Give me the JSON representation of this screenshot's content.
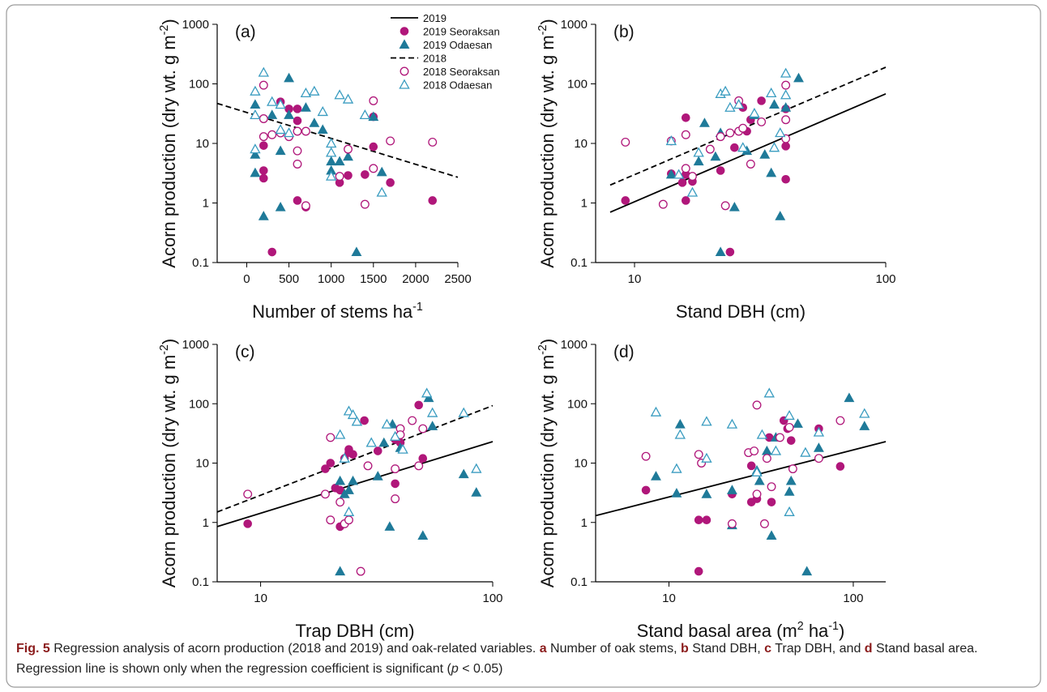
{
  "chart_data": [
    {
      "type": "scatter",
      "panel_label": "(a)",
      "xscale": "linear",
      "yscale": "log",
      "xlabel": [
        "Number of stems ha",
        "-1"
      ],
      "ylabel": [
        "Acorn production (dry wt. g m",
        "-2",
        ")"
      ],
      "xlim": [
        -350,
        2500
      ],
      "ylim": [
        0.1,
        1000
      ],
      "xticks": [
        0,
        500,
        1000,
        1500,
        2000,
        2500
      ],
      "yticks": [
        0.1,
        1,
        10,
        100,
        1000
      ],
      "legend": [
        {
          "label": "2019",
          "marker": "line",
          "color": "#000000",
          "dash": false
        },
        {
          "label": "2019 Seoraksan",
          "marker": "filled-circle",
          "color": "#b0177a"
        },
        {
          "label": "2019 Odaesan",
          "marker": "filled-triangle",
          "color": "#1f7a99"
        },
        {
          "label": "2018",
          "marker": "line",
          "color": "#000000",
          "dash": true
        },
        {
          "label": "2018 Seoraksan",
          "marker": "open-circle",
          "color": "#b0177a"
        },
        {
          "label": "2018 Odaesan",
          "marker": "open-triangle",
          "color": "#3a9cc0"
        }
      ],
      "series": [
        {
          "marker": "line",
          "dash": true,
          "color": "#000000",
          "x": [
            -350,
            2500
          ],
          "values": [
            47,
            2.7
          ]
        },
        {
          "marker": "filled-circle",
          "color": "#b0177a",
          "x": [
            200,
            200,
            200,
            300,
            400,
            500,
            600,
            600,
            600,
            700,
            1100,
            1200,
            1400,
            1500,
            1500,
            1700,
            2200
          ],
          "values": [
            9.2,
            3.5,
            2.6,
            0.15,
            50,
            38,
            38,
            24,
            1.1,
            0.85,
            2.2,
            2.9,
            3,
            28,
            8.8,
            2.2,
            1.1
          ]
        },
        {
          "marker": "filled-triangle",
          "color": "#1f7a99",
          "x": [
            100,
            100,
            100,
            200,
            300,
            400,
            400,
            500,
            500,
            700,
            800,
            900,
            1000,
            1000,
            1100,
            1200,
            1300,
            1500,
            1600
          ],
          "values": [
            45,
            6.5,
            3.2,
            0.6,
            30,
            7.5,
            0.85,
            125,
            30,
            40,
            22,
            17,
            5,
            3.5,
            5,
            6,
            0.15,
            28,
            3.3
          ]
        },
        {
          "marker": "open-circle",
          "color": "#b0177a",
          "x": [
            200,
            200,
            200,
            300,
            400,
            500,
            600,
            600,
            600,
            700,
            700,
            1100,
            1200,
            1400,
            1500,
            1500,
            1700,
            2200
          ],
          "values": [
            95,
            26,
            13,
            14,
            15,
            13,
            7.5,
            4.5,
            16,
            0.9,
            16,
            2.8,
            8,
            0.95,
            52,
            3.8,
            11,
            10.5
          ]
        },
        {
          "marker": "open-triangle",
          "color": "#3a9cc0",
          "x": [
            100,
            100,
            100,
            200,
            300,
            400,
            400,
            500,
            700,
            800,
            900,
            1000,
            1000,
            1000,
            1100,
            1200,
            1400,
            1600
          ],
          "values": [
            75,
            8,
            30,
            155,
            50,
            45,
            17,
            15,
            70,
            75,
            34,
            10,
            7,
            2.8,
            65,
            55,
            30,
            1.5
          ]
        }
      ]
    },
    {
      "type": "scatter",
      "panel_label": "(b)",
      "xscale": "log",
      "yscale": "log",
      "xlabel": [
        "Stand DBH (cm)"
      ],
      "ylabel": [
        "Acorn production (dry wt. g m",
        "-2",
        ")"
      ],
      "xlim": [
        7,
        100
      ],
      "ylim": [
        0.1,
        1000
      ],
      "xticks": [
        10,
        100
      ],
      "yticks": [
        0.1,
        1,
        10,
        100,
        1000
      ],
      "series": [
        {
          "marker": "line",
          "dash": false,
          "color": "#000000",
          "x": [
            8,
            100
          ],
          "values": [
            0.7,
            68
          ]
        },
        {
          "marker": "line",
          "dash": true,
          "color": "#000000",
          "x": [
            8,
            100
          ],
          "values": [
            2,
            190
          ]
        },
        {
          "marker": "filled-circle",
          "color": "#b0177a",
          "x": [
            9.2,
            14,
            15.5,
            16,
            16,
            17,
            16,
            22,
            24,
            25,
            27,
            28,
            29,
            32,
            40,
            40,
            40
          ],
          "values": [
            1.1,
            3.1,
            2.2,
            27,
            1.1,
            2.3,
            3,
            3.5,
            0.15,
            8.5,
            40,
            16,
            25,
            52,
            38,
            9,
            2.5
          ]
        },
        {
          "marker": "filled-triangle",
          "color": "#1f7a99",
          "x": [
            14,
            18,
            19,
            21,
            22,
            22,
            25,
            28,
            30,
            33,
            35,
            36,
            38,
            40,
            45
          ],
          "values": [
            3,
            5,
            22,
            6,
            0.15,
            15,
            0.85,
            7.5,
            30,
            6.5,
            3.2,
            45,
            0.6,
            40,
            125
          ]
        },
        {
          "marker": "open-circle",
          "color": "#b0177a",
          "x": [
            9.2,
            13,
            14,
            16,
            16,
            17,
            20,
            22,
            23,
            24,
            26,
            26,
            27,
            29,
            32,
            40,
            40,
            40
          ],
          "values": [
            10.5,
            0.95,
            11,
            3.8,
            14,
            2.8,
            8,
            13,
            0.9,
            15,
            52,
            16,
            18,
            4.5,
            23,
            95,
            25,
            12
          ]
        },
        {
          "marker": "open-triangle",
          "color": "#3a9cc0",
          "x": [
            14,
            15,
            17,
            18,
            22,
            23,
            24,
            26,
            27,
            30,
            35,
            36,
            38,
            40,
            40
          ],
          "values": [
            11,
            3,
            1.5,
            7,
            68,
            75,
            40,
            45,
            8.5,
            32,
            70,
            8.5,
            15,
            150,
            65
          ]
        }
      ]
    },
    {
      "type": "scatter",
      "panel_label": "(c)",
      "xscale": "log",
      "yscale": "log",
      "xlabel": [
        "Trap DBH (cm)"
      ],
      "ylabel": [
        "Acorn production (dry wt. g m",
        "-2",
        ")"
      ],
      "xlim": [
        6.5,
        100
      ],
      "ylim": [
        0.1,
        1000
      ],
      "xticks": [
        10,
        100
      ],
      "yticks": [
        0.1,
        1,
        10,
        100,
        1000
      ],
      "series": [
        {
          "marker": "line",
          "dash": false,
          "color": "#000000",
          "x": [
            6.5,
            100
          ],
          "values": [
            0.85,
            23
          ]
        },
        {
          "marker": "line",
          "dash": true,
          "color": "#000000",
          "x": [
            6.5,
            100
          ],
          "values": [
            1.5,
            93
          ]
        },
        {
          "marker": "filled-circle",
          "color": "#b0177a",
          "x": [
            8.8,
            19,
            20,
            21,
            22,
            22,
            23,
            24,
            24,
            25,
            28,
            32,
            38,
            38,
            40,
            48,
            50
          ],
          "values": [
            0.95,
            8,
            10,
            3.8,
            0.85,
            3.5,
            12,
            15,
            17,
            14,
            52,
            16,
            4.5,
            25,
            22,
            95,
            12
          ]
        },
        {
          "marker": "filled-triangle",
          "color": "#1f7a99",
          "x": [
            22,
            22,
            23,
            24,
            25,
            26,
            32,
            34,
            36,
            37,
            40,
            50,
            53,
            55,
            75,
            85
          ],
          "values": [
            0.15,
            5,
            3,
            3.5,
            5,
            50,
            6,
            22,
            0.85,
            45,
            18,
            0.6,
            125,
            42,
            6.5,
            3.2
          ]
        },
        {
          "marker": "open-circle",
          "color": "#b0177a",
          "x": [
            8.8,
            19,
            20,
            20,
            22,
            23,
            24,
            27,
            29,
            38,
            38,
            40,
            40,
            45,
            48,
            50
          ],
          "values": [
            3,
            3,
            1.1,
            27,
            2.2,
            0.95,
            1.1,
            0.15,
            9,
            8,
            2.5,
            38,
            30,
            52,
            9,
            38
          ]
        },
        {
          "marker": "open-triangle",
          "color": "#3a9cc0",
          "x": [
            22,
            23,
            24,
            24,
            25,
            26,
            30,
            35,
            38,
            41,
            52,
            55,
            75,
            85
          ],
          "values": [
            30,
            12,
            1.5,
            75,
            65,
            50,
            22,
            45,
            28,
            17,
            150,
            70,
            70,
            8
          ]
        }
      ]
    },
    {
      "type": "scatter",
      "panel_label": "(d)",
      "xscale": "log",
      "yscale": "log",
      "xlabel": [
        "Stand basal area (m",
        "2",
        " ha",
        "-1",
        ")"
      ],
      "ylabel": [
        "Acorn production (dry wt. g m",
        "-2",
        ")"
      ],
      "xlim": [
        4,
        150
      ],
      "ylim": [
        0.1,
        1000
      ],
      "xticks": [
        10,
        100
      ],
      "yticks": [
        0.1,
        1,
        10,
        100,
        1000
      ],
      "series": [
        {
          "marker": "line",
          "dash": false,
          "color": "#000000",
          "x": [
            4,
            150
          ],
          "values": [
            1.3,
            23
          ]
        },
        {
          "marker": "filled-circle",
          "color": "#b0177a",
          "x": [
            7.5,
            14.5,
            14.5,
            16,
            22,
            28,
            28,
            30,
            35,
            36,
            42,
            44,
            46,
            65,
            85
          ],
          "values": [
            3.5,
            0.15,
            1.1,
            1.1,
            3,
            9,
            2.2,
            2.5,
            27,
            2.2,
            52,
            38,
            24,
            38,
            8.8
          ]
        },
        {
          "marker": "filled-triangle",
          "color": "#1f7a99",
          "x": [
            8.5,
            11,
            11.5,
            16,
            22,
            22,
            30,
            31,
            34,
            36,
            38,
            45,
            46,
            50,
            56,
            65,
            95,
            115
          ],
          "values": [
            6,
            3.1,
            45,
            3,
            0.9,
            3.5,
            7.5,
            5,
            16,
            0.6,
            27,
            3.3,
            5,
            46,
            0.15,
            18,
            125,
            42
          ]
        },
        {
          "marker": "open-circle",
          "color": "#b0177a",
          "x": [
            7.5,
            14.5,
            15,
            22,
            27,
            29,
            30,
            30,
            33,
            34,
            36,
            40,
            45,
            47,
            65,
            85
          ],
          "values": [
            13,
            14,
            10,
            0.95,
            15,
            16,
            95,
            3,
            0.95,
            12,
            4,
            27,
            40,
            8,
            12,
            52
          ]
        },
        {
          "marker": "open-triangle",
          "color": "#3a9cc0",
          "x": [
            8.5,
            11,
            11.5,
            16,
            16,
            22,
            30,
            32,
            35,
            38,
            45,
            45,
            55,
            65,
            115
          ],
          "values": [
            72,
            8,
            30,
            12,
            50,
            45,
            7,
            30,
            150,
            16,
            63,
            1.5,
            15,
            33,
            68
          ]
        }
      ]
    }
  ],
  "caption": [
    {
      "text": "Fig. 5",
      "bold": true
    },
    {
      "text": " Regression analysis of acorn production (2018 and 2019) and oak-related variables. "
    },
    {
      "text": "a",
      "bold": true
    },
    {
      "text": " Number of oak stems, "
    },
    {
      "text": "b",
      "bold": true
    },
    {
      "text": " Stand DBH, "
    },
    {
      "text": "c",
      "bold": true
    },
    {
      "text": " Trap DBH, and "
    },
    {
      "text": "d",
      "bold": true
    },
    {
      "text": " Stand basal area. Regression line is shown only when the regression coefficient is significant ("
    },
    {
      "text": "p",
      "italic": true
    },
    {
      "text": " < 0.05)"
    }
  ]
}
